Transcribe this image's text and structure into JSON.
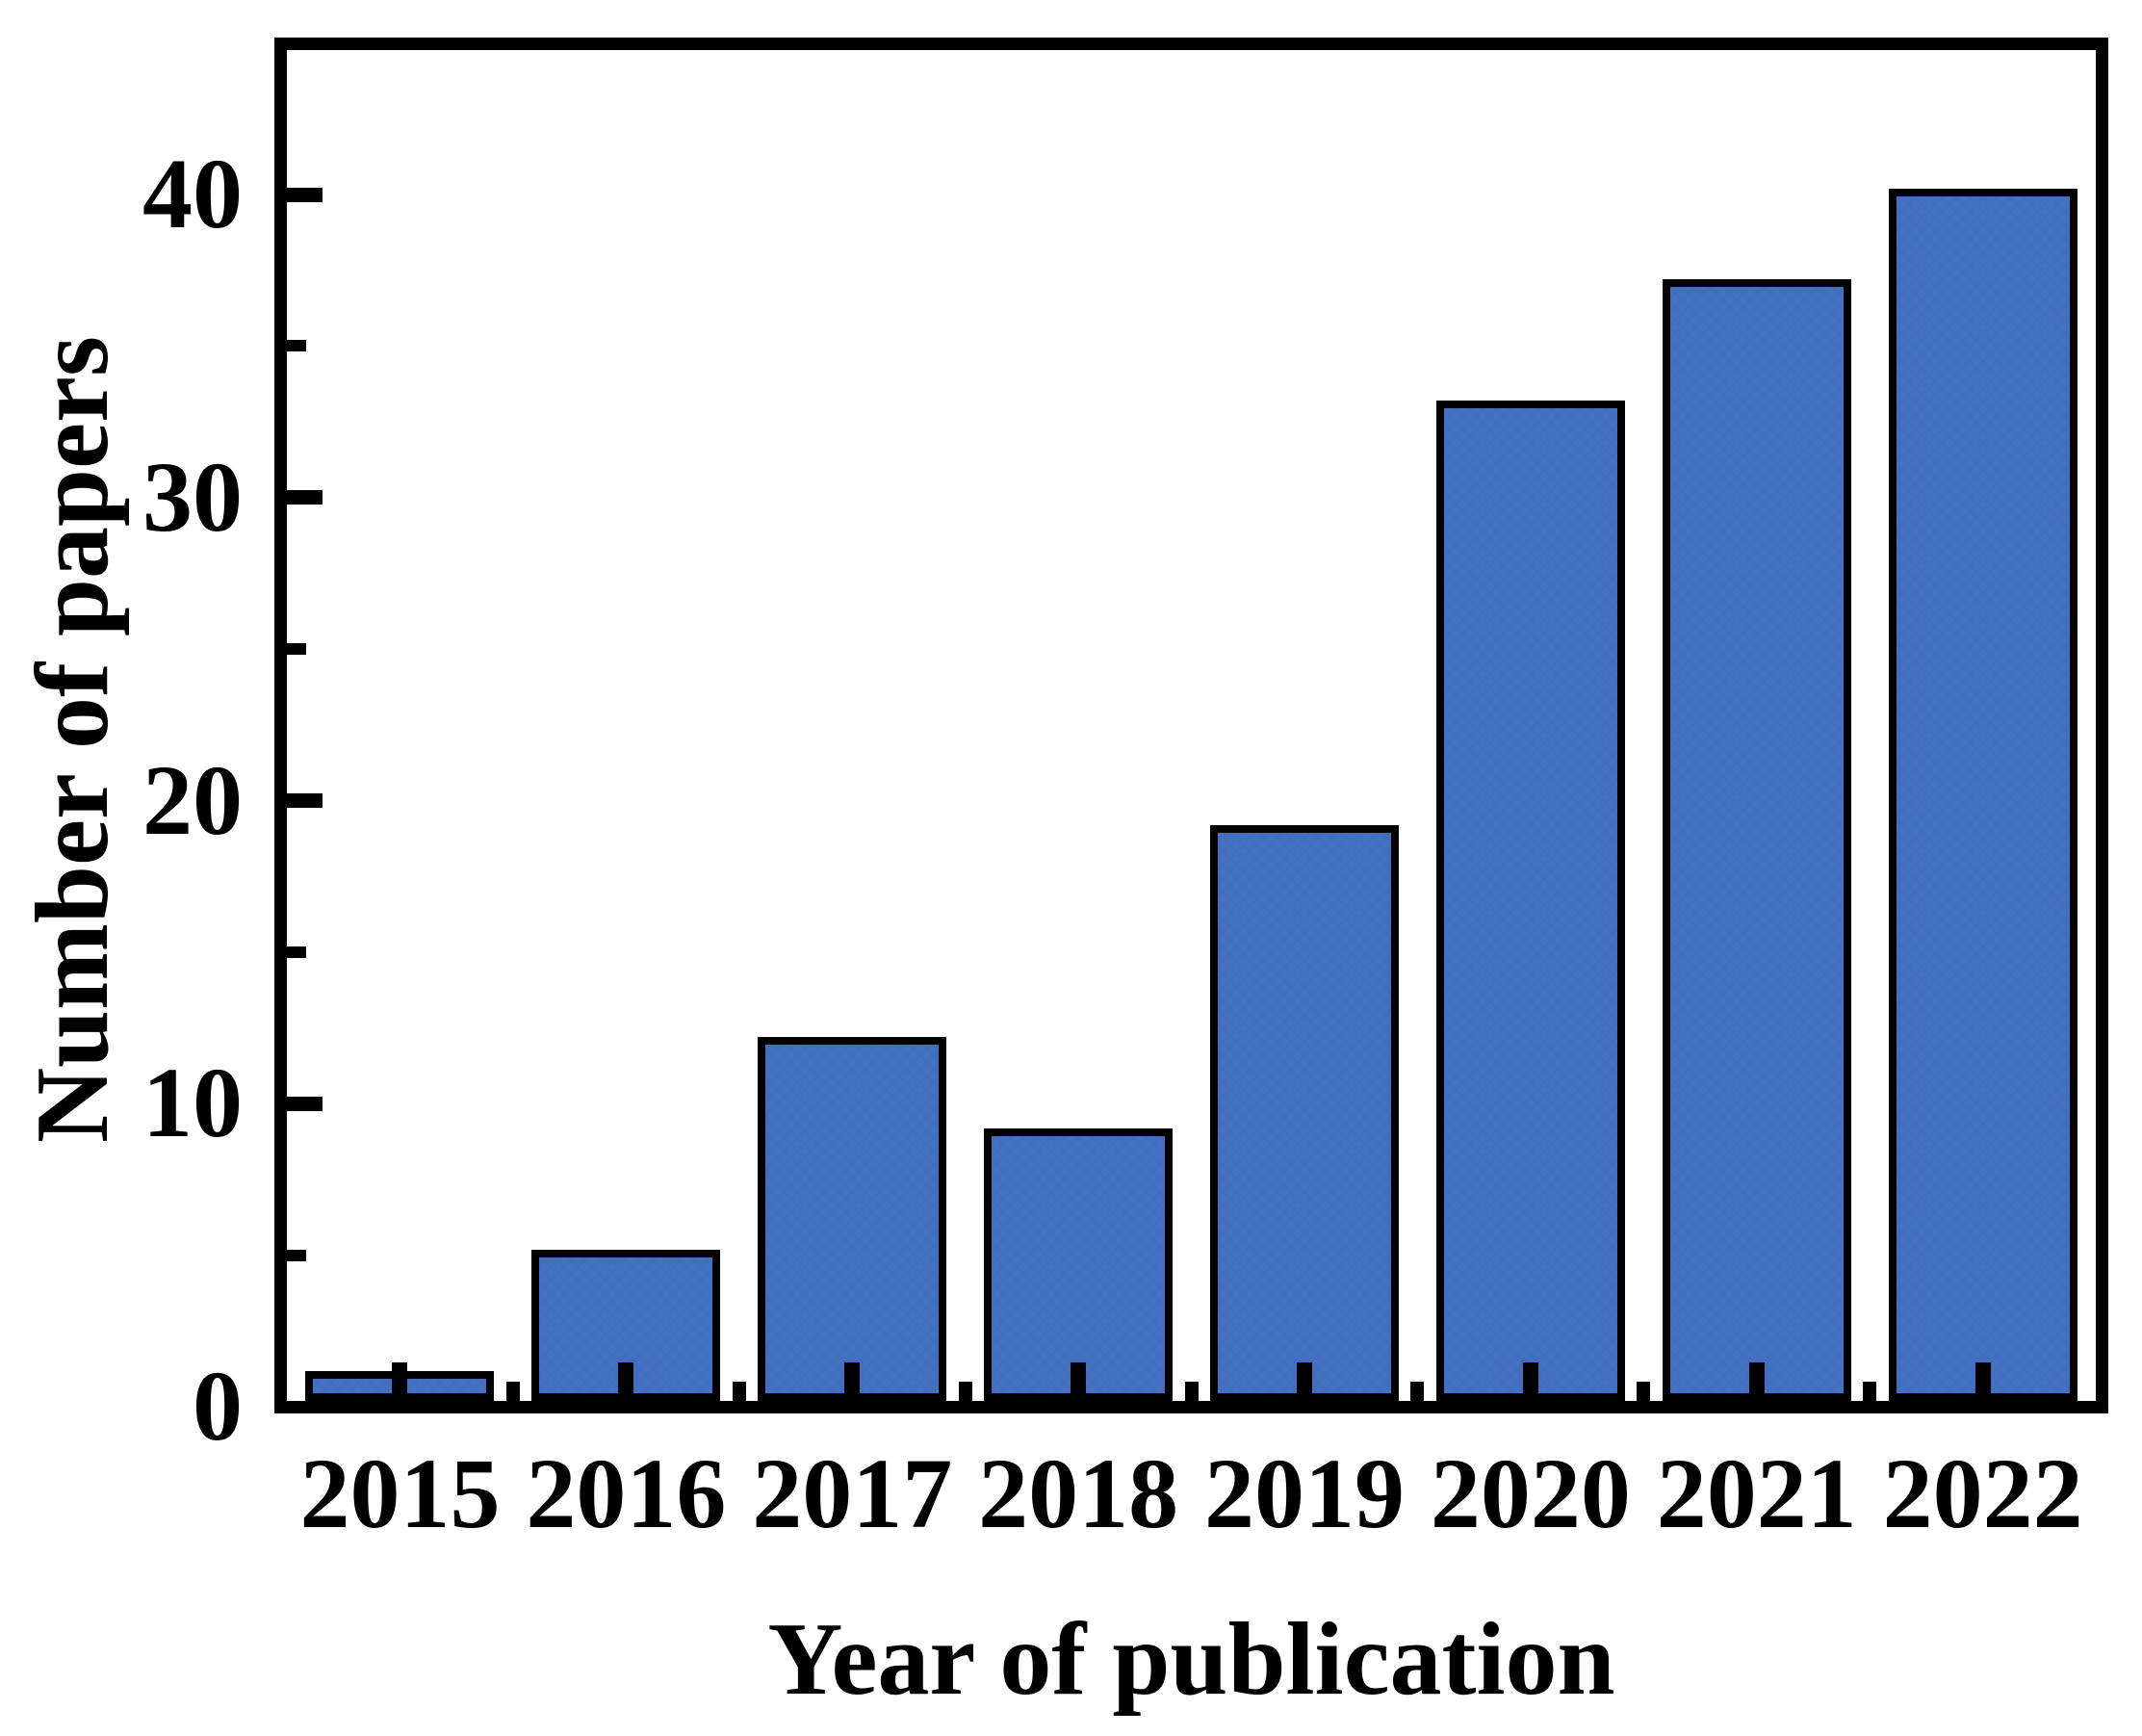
{
  "figure": {
    "background": "#ffffff",
    "text_color": "#000000"
  },
  "chart_data": {
    "type": "bar",
    "categories": [
      "2015",
      "2016",
      "2017",
      "2018",
      "2019",
      "2020",
      "2021",
      "2022"
    ],
    "values": [
      1,
      5,
      12,
      9,
      19,
      33,
      37,
      40
    ],
    "title": "",
    "xlabel": "Year of publication",
    "ylabel": "Number of papers",
    "ylim": [
      0,
      45
    ],
    "yticks_major": [
      0,
      10,
      20,
      30,
      40
    ],
    "yticks_minor": [
      5,
      15,
      25,
      35
    ],
    "xtick_labels": [
      "2015",
      "2016",
      "2017",
      "2018",
      "2019",
      "2020",
      "2021",
      "2022"
    ],
    "grid": false,
    "legend": "none",
    "bar_color": "#4470C2",
    "bar_pattern_color": "#3D65B2",
    "bar_border_color": "#000000",
    "axis_color": "#000000"
  }
}
